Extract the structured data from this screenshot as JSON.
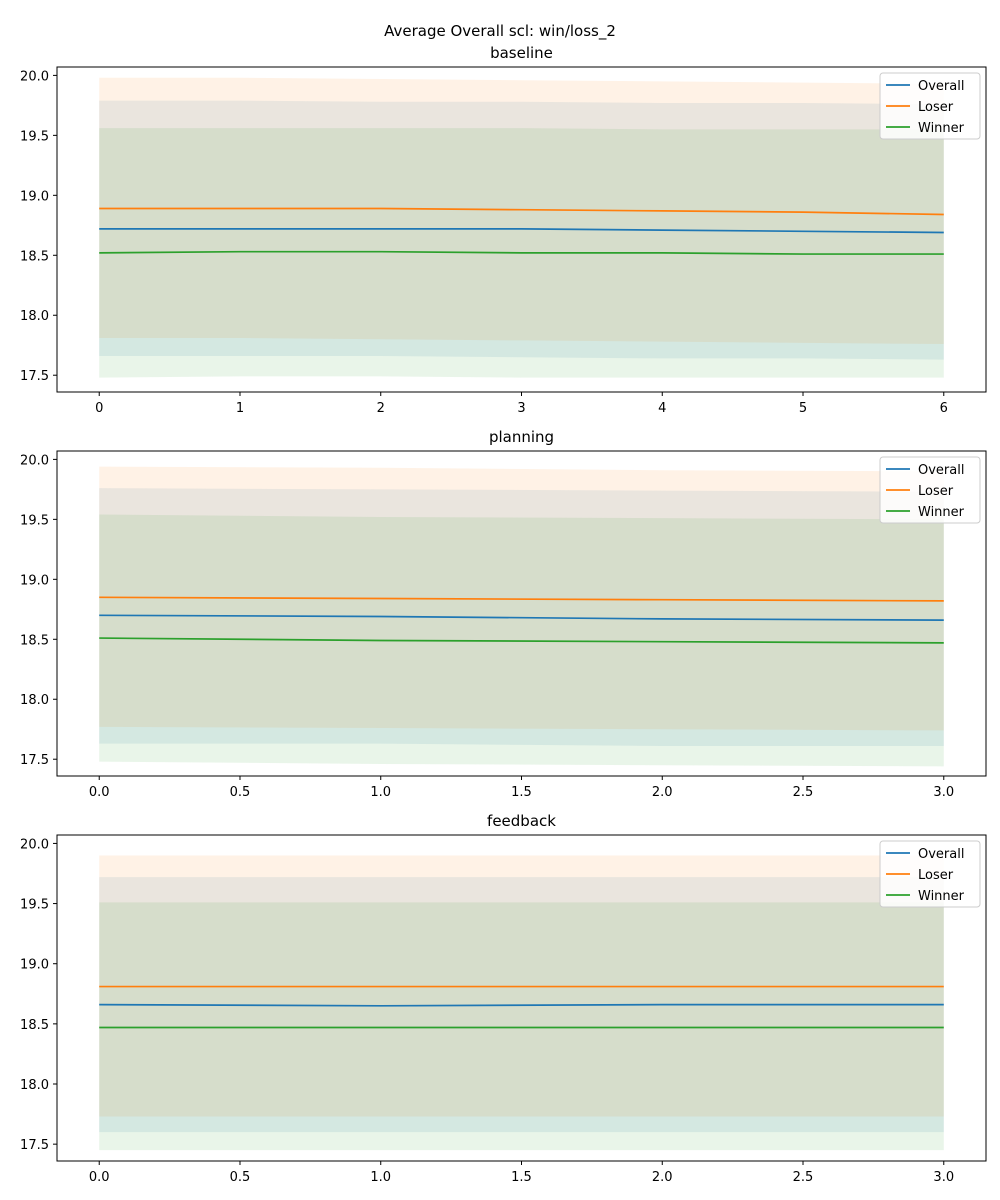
{
  "figure": {
    "suptitle": "Average Overall scl: win/loss_2"
  },
  "colors": {
    "Overall": "#1f77b4",
    "Loser": "#ff7f0e",
    "Winner": "#2ca02c"
  },
  "chart_data": [
    {
      "type": "line",
      "title": "baseline",
      "xlabel": "",
      "ylabel": "",
      "xlim": [
        -0.3,
        6.3
      ],
      "ylim": [
        17.36,
        20.07
      ],
      "xticks": [
        "0",
        "1",
        "2",
        "3",
        "4",
        "5",
        "6"
      ],
      "yticks": [
        "17.5",
        "18.0",
        "18.5",
        "19.0",
        "19.5",
        "20.0"
      ],
      "legend": "top-right",
      "grid": false,
      "x": [
        0,
        1,
        2,
        3,
        4,
        5,
        6
      ],
      "series": [
        {
          "name": "Overall",
          "values": [
            18.72,
            18.72,
            18.72,
            18.72,
            18.71,
            18.7,
            18.69
          ],
          "band_lower": [
            17.66,
            17.66,
            17.66,
            17.65,
            17.64,
            17.64,
            17.63
          ],
          "band_upper": [
            19.79,
            19.79,
            19.78,
            19.78,
            19.77,
            19.77,
            19.76
          ]
        },
        {
          "name": "Loser",
          "values": [
            18.89,
            18.89,
            18.89,
            18.88,
            18.87,
            18.86,
            18.84
          ],
          "band_lower": [
            17.81,
            17.81,
            17.8,
            17.79,
            17.78,
            17.77,
            17.76
          ],
          "band_upper": [
            19.98,
            19.98,
            19.97,
            19.96,
            19.95,
            19.94,
            19.93
          ]
        },
        {
          "name": "Winner",
          "values": [
            18.52,
            18.53,
            18.53,
            18.52,
            18.52,
            18.51,
            18.51
          ],
          "band_lower": [
            17.48,
            17.49,
            17.49,
            17.48,
            17.48,
            17.48,
            17.48
          ],
          "band_upper": [
            19.56,
            19.56,
            19.56,
            19.56,
            19.55,
            19.55,
            19.55
          ]
        }
      ]
    },
    {
      "type": "line",
      "title": "planning",
      "xlabel": "",
      "ylabel": "",
      "xlim": [
        -0.15,
        3.15
      ],
      "ylim": [
        17.36,
        20.07
      ],
      "xticks": [
        "0.0",
        "0.5",
        "1.0",
        "1.5",
        "2.0",
        "2.5",
        "3.0"
      ],
      "yticks": [
        "17.5",
        "18.0",
        "18.5",
        "19.0",
        "19.5",
        "20.0"
      ],
      "legend": "top-right",
      "grid": false,
      "x": [
        0,
        1,
        2,
        3
      ],
      "series": [
        {
          "name": "Overall",
          "values": [
            18.7,
            18.69,
            18.67,
            18.66
          ],
          "band_lower": [
            17.63,
            17.63,
            17.61,
            17.61
          ],
          "band_upper": [
            19.76,
            19.75,
            19.74,
            19.73
          ]
        },
        {
          "name": "Loser",
          "values": [
            18.85,
            18.84,
            18.83,
            18.82
          ],
          "band_lower": [
            17.77,
            17.76,
            17.75,
            17.74
          ],
          "band_upper": [
            19.94,
            19.93,
            19.91,
            19.9
          ]
        },
        {
          "name": "Winner",
          "values": [
            18.51,
            18.49,
            18.48,
            18.47
          ],
          "band_lower": [
            17.48,
            17.46,
            17.45,
            17.44
          ],
          "band_upper": [
            19.54,
            19.52,
            19.51,
            19.5
          ]
        }
      ]
    },
    {
      "type": "line",
      "title": "feedback",
      "xlabel": "",
      "ylabel": "",
      "xlim": [
        -0.15,
        3.15
      ],
      "ylim": [
        17.36,
        20.07
      ],
      "xticks": [
        "0.0",
        "0.5",
        "1.0",
        "1.5",
        "2.0",
        "2.5",
        "3.0"
      ],
      "yticks": [
        "17.5",
        "18.0",
        "18.5",
        "19.0",
        "19.5",
        "20.0"
      ],
      "legend": "top-right",
      "grid": false,
      "x": [
        0,
        1,
        2,
        3
      ],
      "series": [
        {
          "name": "Overall",
          "values": [
            18.66,
            18.65,
            18.66,
            18.66
          ],
          "band_lower": [
            17.6,
            17.6,
            17.6,
            17.6
          ],
          "band_upper": [
            19.72,
            19.72,
            19.72,
            19.72
          ]
        },
        {
          "name": "Loser",
          "values": [
            18.81,
            18.81,
            18.81,
            18.81
          ],
          "band_lower": [
            17.73,
            17.73,
            17.73,
            17.73
          ],
          "band_upper": [
            19.9,
            19.9,
            19.9,
            19.9
          ]
        },
        {
          "name": "Winner",
          "values": [
            18.47,
            18.47,
            18.47,
            18.47
          ],
          "band_lower": [
            17.45,
            17.45,
            17.45,
            17.45
          ],
          "band_upper": [
            19.51,
            19.51,
            19.51,
            19.51
          ]
        }
      ]
    }
  ]
}
